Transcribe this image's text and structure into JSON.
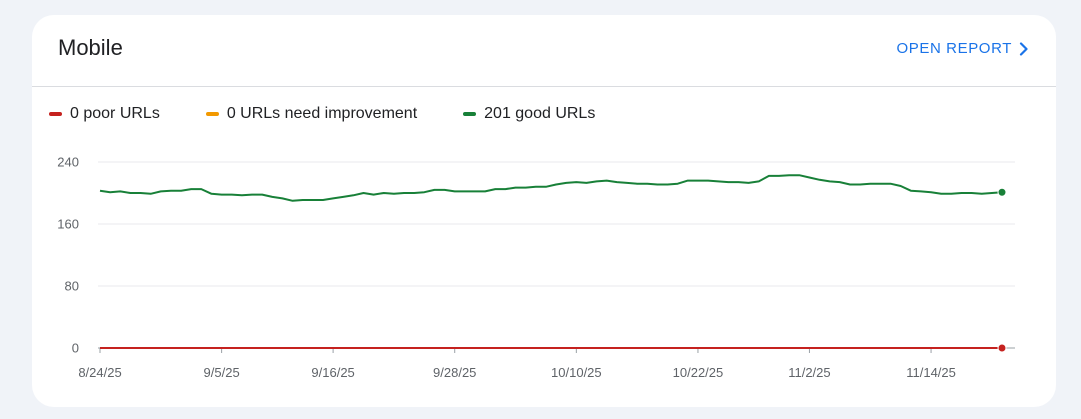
{
  "card": {
    "title": "Mobile",
    "open_report_label": "OPEN REPORT"
  },
  "colors": {
    "poor": "#c5221f",
    "needs_improvement": "#f29900",
    "good": "#188038",
    "link": "#1a73e8"
  },
  "legend": [
    {
      "label": "0 poor URLs",
      "color_key": "poor"
    },
    {
      "label": "0 URLs need improvement",
      "color_key": "needs_improvement"
    },
    {
      "label": "201 good URLs",
      "color_key": "good"
    }
  ],
  "chart_data": {
    "type": "line",
    "x_tick_labels": [
      "8/24/25",
      "9/5/25",
      "9/16/25",
      "9/28/25",
      "10/10/25",
      "10/22/25",
      "11/2/25",
      "11/14/25"
    ],
    "x_tick_indices": [
      0,
      12,
      23,
      35,
      47,
      59,
      70,
      82
    ],
    "y_ticks": [
      0,
      80,
      160,
      240
    ],
    "ylim": [
      0,
      240
    ],
    "grid": true,
    "series": [
      {
        "name": "good URLs",
        "color_key": "good",
        "values": [
          203,
          201,
          202,
          200,
          200,
          199,
          202,
          203,
          203,
          205,
          205,
          199,
          198,
          198,
          197,
          198,
          198,
          195,
          193,
          190,
          191,
          191,
          191,
          193,
          195,
          197,
          200,
          198,
          200,
          199,
          200,
          200,
          201,
          204,
          204,
          202,
          202,
          202,
          202,
          205,
          205,
          207,
          207,
          208,
          208,
          211,
          213,
          214,
          213,
          215,
          216,
          214,
          213,
          212,
          212,
          211,
          211,
          212,
          216,
          216,
          216,
          215,
          214,
          214,
          213,
          215,
          222,
          222,
          223,
          223,
          220,
          217,
          215,
          214,
          211,
          211,
          212,
          212,
          212,
          209,
          203,
          202,
          201,
          199,
          199,
          200,
          200,
          199,
          200,
          201
        ],
        "end_marker": true
      },
      {
        "name": "poor URLs",
        "color_key": "poor",
        "values": [
          0,
          0,
          0,
          0,
          0,
          0,
          0,
          0,
          0,
          0,
          0,
          0,
          0,
          0,
          0,
          0,
          0,
          0,
          0,
          0,
          0,
          0,
          0,
          0,
          0,
          0,
          0,
          0,
          0,
          0,
          0,
          0,
          0,
          0,
          0,
          0,
          0,
          0,
          0,
          0,
          0,
          0,
          0,
          0,
          0,
          0,
          0,
          0,
          0,
          0,
          0,
          0,
          0,
          0,
          0,
          0,
          0,
          0,
          0,
          0,
          0,
          0,
          0,
          0,
          0,
          0,
          0,
          0,
          0,
          0,
          0,
          0,
          0,
          0,
          0,
          0,
          0,
          0,
          0,
          0,
          0,
          0,
          0,
          0,
          0,
          0,
          0,
          0,
          0,
          0
        ],
        "end_marker": true
      }
    ]
  }
}
